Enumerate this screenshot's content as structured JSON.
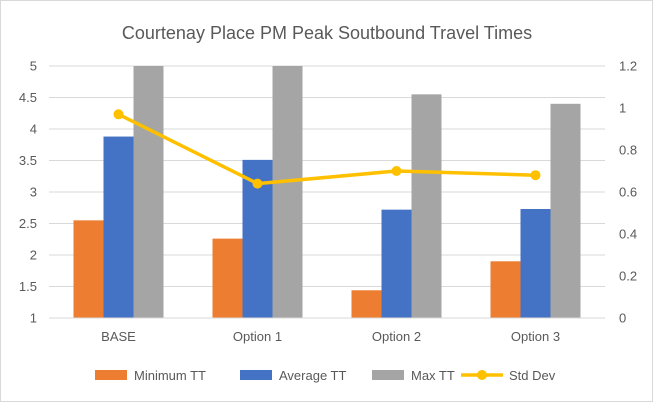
{
  "chart_data": {
    "type": "bar",
    "title": "Courtenay Place PM Peak Soutbound Travel Times",
    "categories": [
      "BASE",
      "Option 1",
      "Option 2",
      "Option 3"
    ],
    "series": [
      {
        "name": "Minimum TT",
        "type": "bar",
        "axis": "left",
        "color": "#ed7d31",
        "values": [
          2.55,
          2.26,
          1.44,
          1.9
        ]
      },
      {
        "name": "Average TT",
        "type": "bar",
        "axis": "left",
        "color": "#4472c4",
        "values": [
          3.88,
          3.51,
          2.72,
          2.73
        ]
      },
      {
        "name": "Max TT",
        "type": "bar",
        "axis": "left",
        "color": "#a5a5a5",
        "values": [
          5.0,
          5.0,
          4.55,
          4.4
        ]
      },
      {
        "name": "Std Dev",
        "type": "line",
        "axis": "right",
        "color": "#ffc000",
        "values": [
          0.97,
          0.64,
          0.7,
          0.68
        ]
      }
    ],
    "y_left": {
      "min": 1,
      "max": 5,
      "ticks": [
        "1",
        "1.5",
        "2",
        "2.5",
        "3",
        "3.5",
        "4",
        "4.5",
        "5"
      ]
    },
    "y_right": {
      "min": 0,
      "max": 1.2,
      "ticks": [
        "0",
        "0.2",
        "0.4",
        "0.6",
        "0.8",
        "1",
        "1.2"
      ]
    },
    "grid": true,
    "legend_position": "bottom"
  }
}
